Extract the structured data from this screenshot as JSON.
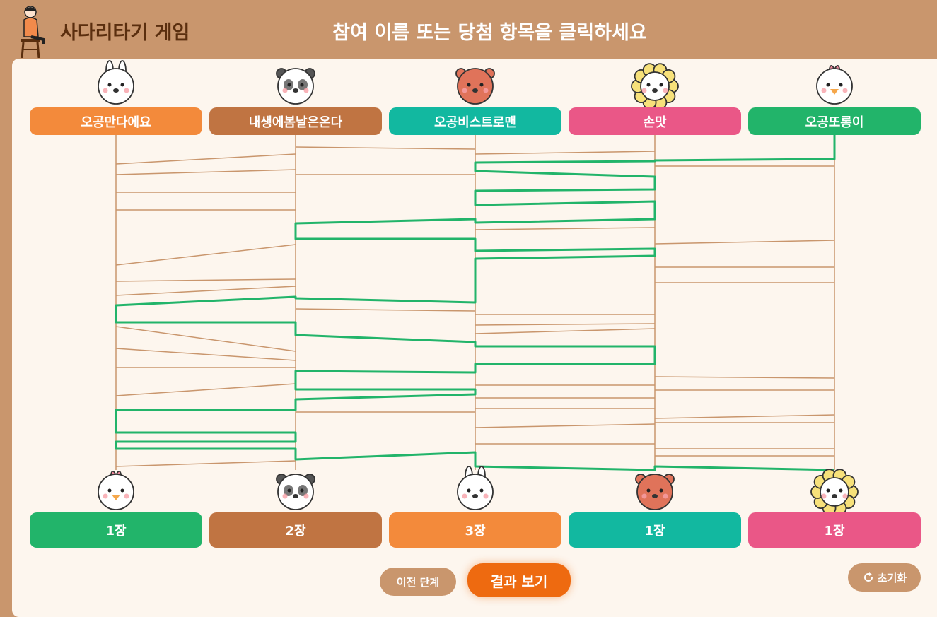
{
  "header": {
    "title": "사다리타기 게임",
    "instruction": "참여 이름 또는 당첨 항목을 클릭하세요"
  },
  "participants": [
    {
      "name": "오공만다에요",
      "color": "#f38a3b"
    },
    {
      "name": "내생에봄날은온다",
      "color": "#c07442"
    },
    {
      "name": "오공비스트로맨",
      "color": "#12b8a0"
    },
    {
      "name": "손맛",
      "color": "#ea5787"
    },
    {
      "name": "오공또롱이",
      "color": "#22b46a"
    }
  ],
  "prizes": [
    {
      "label": "1장",
      "color": "#22b46a"
    },
    {
      "label": "2장",
      "color": "#c07442"
    },
    {
      "label": "3장",
      "color": "#f38a3b"
    },
    {
      "label": "1장",
      "color": "#12b8a0"
    },
    {
      "label": "1장",
      "color": "#ea5787"
    }
  ],
  "buttons": {
    "back": "이전 단계",
    "result": "결과 보기",
    "reset": "초기화"
  }
}
